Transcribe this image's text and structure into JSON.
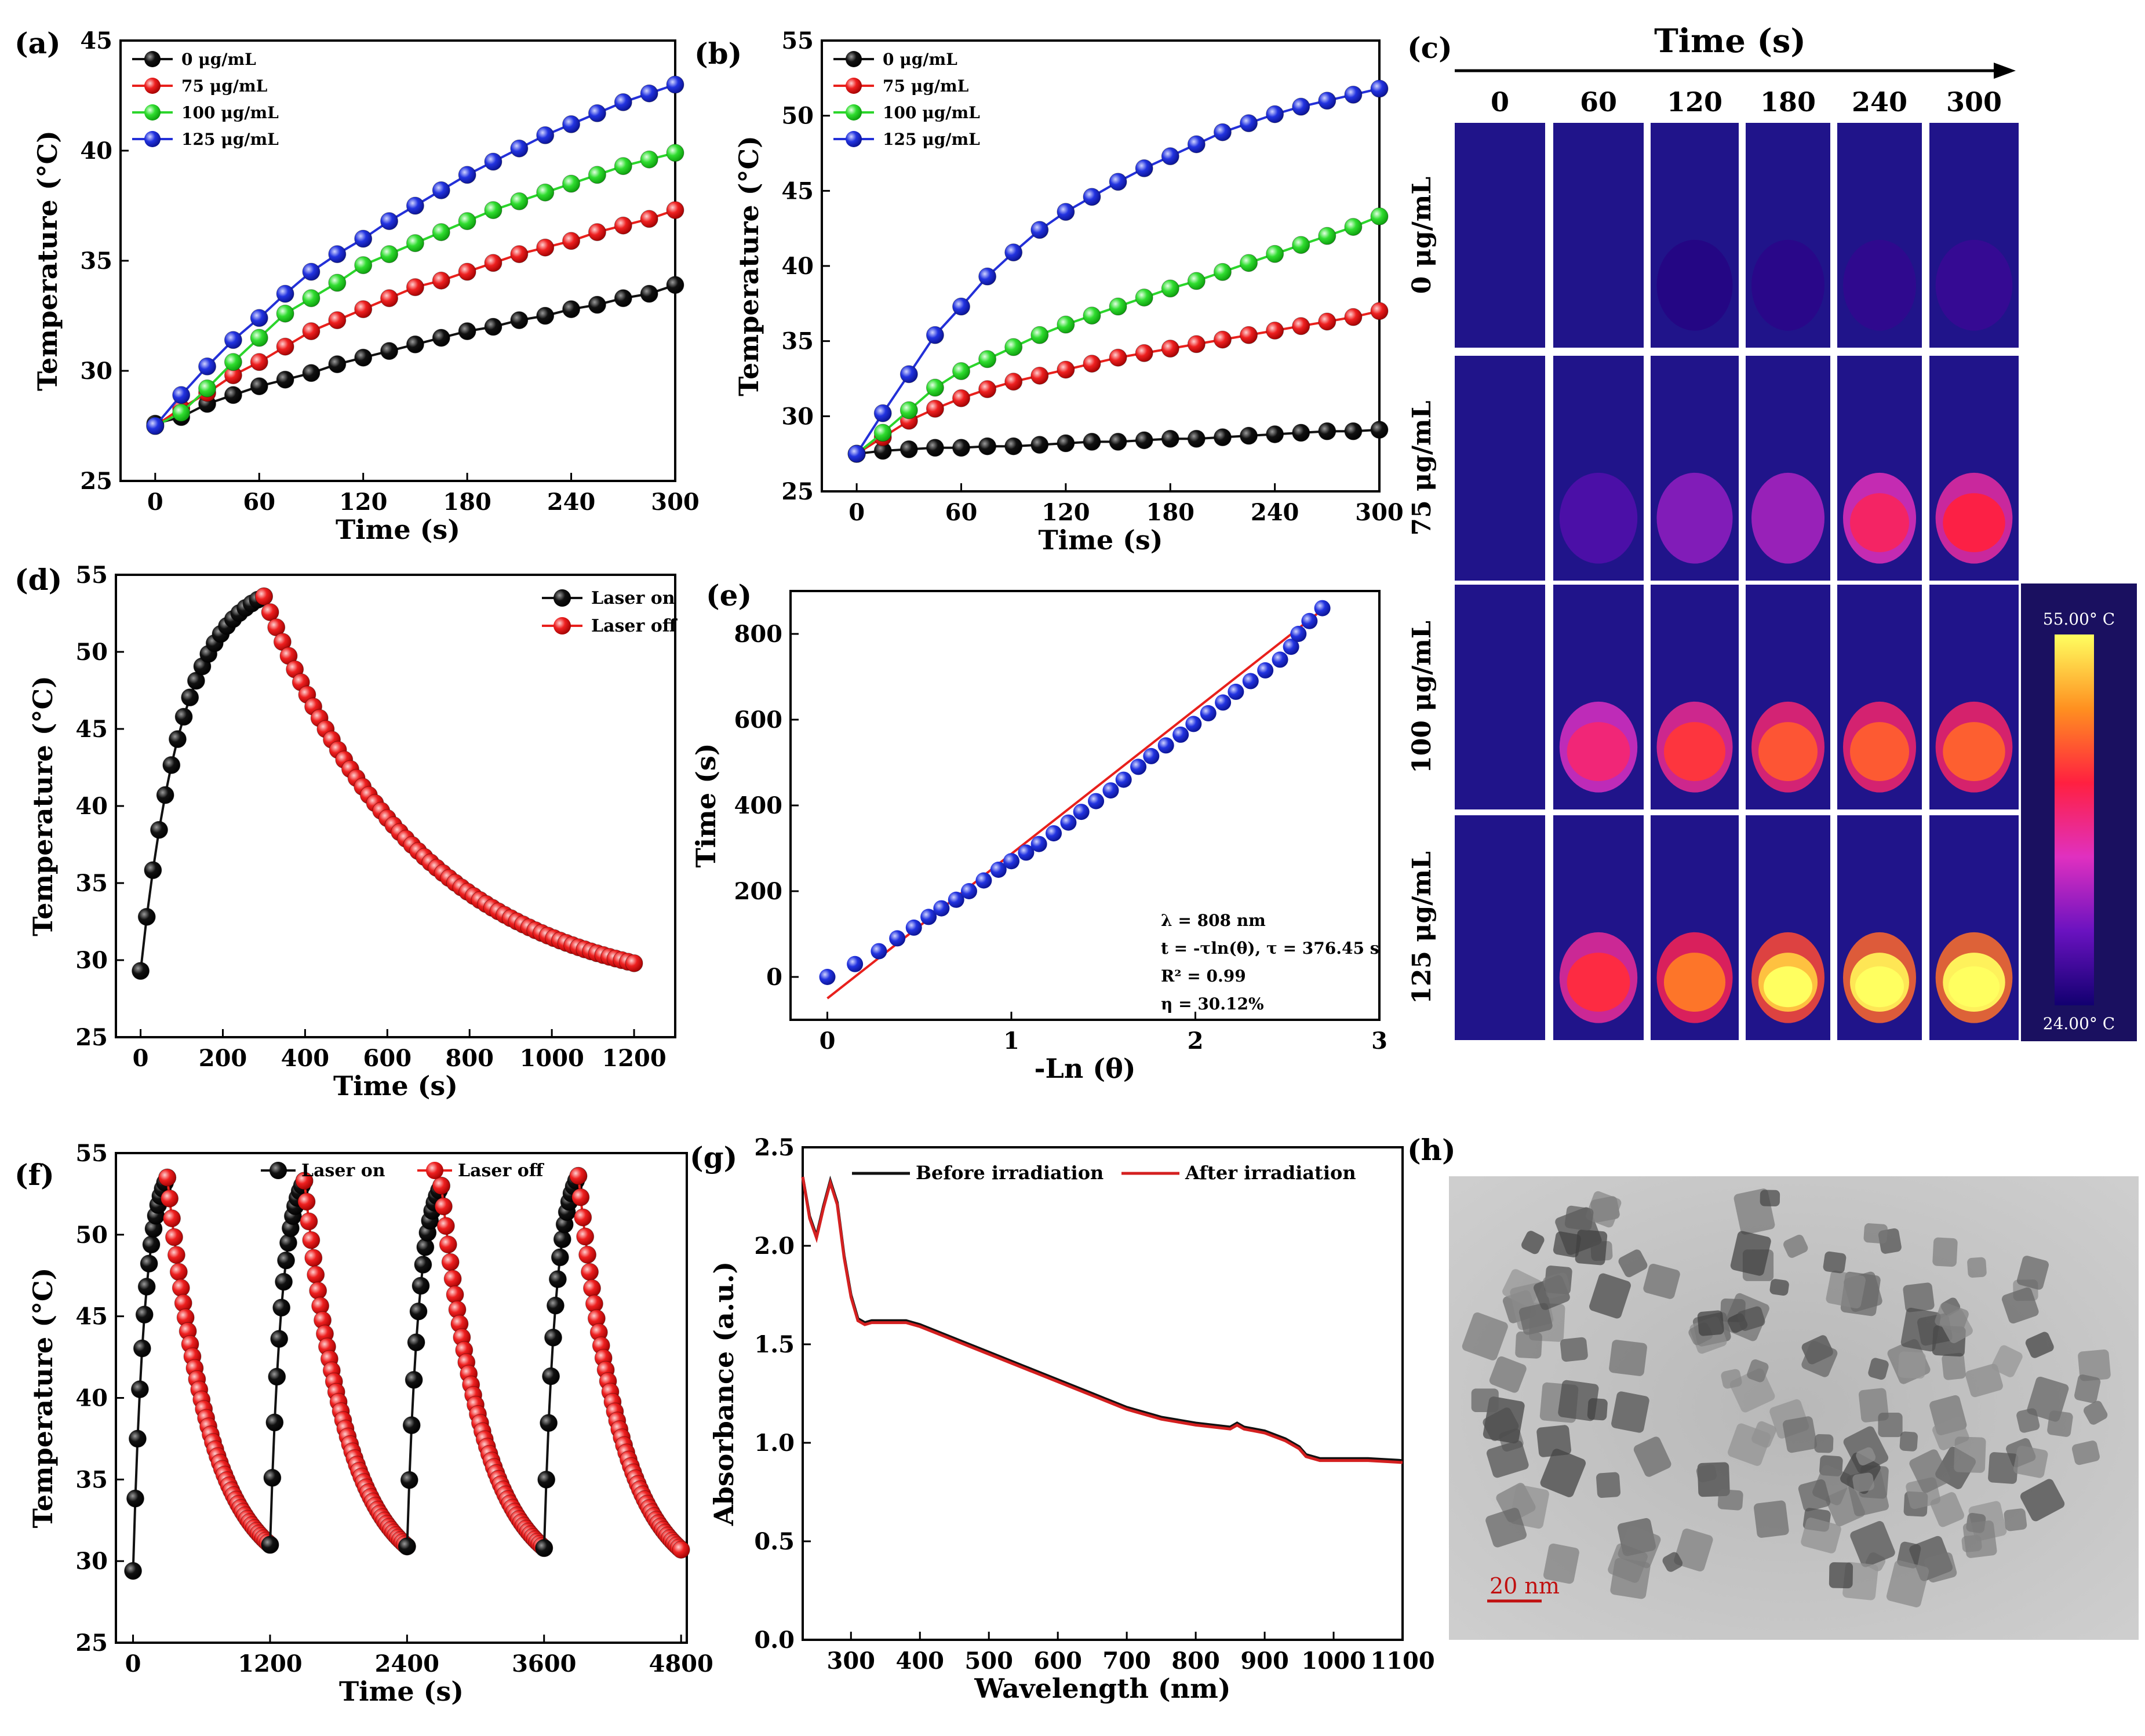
{
  "panel_labels": {
    "a": "(a)",
    "b": "(b)",
    "c": "(c)",
    "d": "(d)",
    "e": "(e)",
    "f": "(f)",
    "g": "(g)",
    "h": "(h)"
  },
  "colors": {
    "black": "#111111",
    "red": "#e8201c",
    "green": "#2bd52b",
    "blue": "#2330d8",
    "fitline": "#e8201c",
    "abs_before": "#111111",
    "abs_after": "#d42020"
  },
  "thermal": {
    "header": "Time (s)",
    "times": [
      "0",
      "60",
      "120",
      "180",
      "240",
      "300"
    ],
    "concentrations": [
      "0 μg/mL",
      "75 μg/mL",
      "100 μg/mL",
      "125 μg/mL"
    ],
    "intensity": [
      [
        0.02,
        0.04,
        0.06,
        0.08,
        0.1,
        0.12
      ],
      [
        0.03,
        0.2,
        0.36,
        0.42,
        0.55,
        0.6
      ],
      [
        0.04,
        0.52,
        0.64,
        0.7,
        0.71,
        0.72
      ],
      [
        0.05,
        0.62,
        0.76,
        0.9,
        0.97,
        0.99
      ]
    ],
    "colorbar_max": "55.00° C",
    "colorbar_min": "24.00° C"
  },
  "tem": {
    "scale_label": "20 nm"
  },
  "chart_data": [
    {
      "id": "a",
      "type": "line",
      "xlabel": "Time (s)",
      "ylabel": "Temperature (°C)",
      "xlim": [
        -20,
        300
      ],
      "ylim": [
        25,
        45
      ],
      "xticks": [
        0,
        60,
        120,
        180,
        240,
        300
      ],
      "yticks": [
        25,
        30,
        35,
        40,
        45
      ],
      "legend_position": "top-left",
      "x": [
        0,
        15,
        30,
        45,
        60,
        75,
        90,
        105,
        120,
        135,
        150,
        165,
        180,
        195,
        210,
        225,
        240,
        255,
        270,
        285,
        300
      ],
      "series": [
        {
          "name": "0 μg/mL",
          "color": "black",
          "values": [
            27.6,
            27.9,
            28.5,
            28.9,
            29.3,
            29.6,
            29.9,
            30.3,
            30.6,
            30.9,
            31.2,
            31.5,
            31.8,
            32.0,
            32.3,
            32.5,
            32.8,
            33.0,
            33.3,
            33.5,
            33.9
          ]
        },
        {
          "name": "75 μg/mL",
          "color": "red",
          "values": [
            27.5,
            28.3,
            29.0,
            29.8,
            30.4,
            31.1,
            31.8,
            32.3,
            32.8,
            33.3,
            33.8,
            34.1,
            34.5,
            34.9,
            35.3,
            35.6,
            35.9,
            36.3,
            36.6,
            36.9,
            37.3
          ]
        },
        {
          "name": "100 μg/mL",
          "color": "green",
          "values": [
            27.5,
            28.1,
            29.2,
            30.4,
            31.5,
            32.6,
            33.3,
            34.0,
            34.8,
            35.3,
            35.8,
            36.3,
            36.8,
            37.3,
            37.7,
            38.1,
            38.5,
            38.9,
            39.3,
            39.6,
            39.9
          ]
        },
        {
          "name": "125 μg/mL",
          "color": "blue",
          "values": [
            27.5,
            28.9,
            30.2,
            31.4,
            32.4,
            33.5,
            34.5,
            35.3,
            36.0,
            36.8,
            37.5,
            38.2,
            38.9,
            39.5,
            40.1,
            40.7,
            41.2,
            41.7,
            42.2,
            42.6,
            43.0
          ]
        }
      ]
    },
    {
      "id": "b",
      "type": "line",
      "xlabel": "Time (s)",
      "ylabel": "Temperature (°C)",
      "xlim": [
        -20,
        300
      ],
      "ylim": [
        25,
        55
      ],
      "xticks": [
        0,
        60,
        120,
        180,
        240,
        300
      ],
      "yticks": [
        25,
        30,
        35,
        40,
        45,
        50,
        55
      ],
      "legend_position": "top-left",
      "x": [
        0,
        15,
        30,
        45,
        60,
        75,
        90,
        105,
        120,
        135,
        150,
        165,
        180,
        195,
        210,
        225,
        240,
        255,
        270,
        285,
        300
      ],
      "series": [
        {
          "name": "0 μg/mL",
          "color": "black",
          "values": [
            27.5,
            27.7,
            27.8,
            27.9,
            27.9,
            28.0,
            28.0,
            28.1,
            28.2,
            28.3,
            28.3,
            28.4,
            28.5,
            28.5,
            28.6,
            28.7,
            28.8,
            28.9,
            29.0,
            29.0,
            29.1
          ]
        },
        {
          "name": "75 μg/mL",
          "color": "red",
          "values": [
            27.5,
            28.6,
            29.7,
            30.5,
            31.2,
            31.8,
            32.3,
            32.7,
            33.1,
            33.5,
            33.9,
            34.2,
            34.5,
            34.8,
            35.1,
            35.4,
            35.7,
            36.0,
            36.3,
            36.6,
            37.0
          ]
        },
        {
          "name": "100 μg/mL",
          "color": "green",
          "values": [
            27.5,
            28.9,
            30.4,
            31.9,
            33.0,
            33.8,
            34.6,
            35.4,
            36.1,
            36.7,
            37.3,
            37.9,
            38.5,
            39.0,
            39.6,
            40.2,
            40.8,
            41.4,
            42.0,
            42.6,
            43.3
          ]
        },
        {
          "name": "125 μg/mL",
          "color": "blue",
          "values": [
            27.5,
            30.2,
            32.8,
            35.4,
            37.3,
            39.3,
            40.9,
            42.4,
            43.6,
            44.6,
            45.6,
            46.5,
            47.3,
            48.1,
            48.9,
            49.5,
            50.1,
            50.6,
            51.0,
            51.4,
            51.8
          ]
        }
      ]
    },
    {
      "id": "d",
      "type": "line",
      "xlabel": "Time (s)",
      "ylabel": "Temperature (°C)",
      "xlim": [
        -60,
        1300
      ],
      "ylim": [
        25,
        55
      ],
      "xticks": [
        0,
        200,
        400,
        600,
        800,
        1000,
        1200
      ],
      "yticks": [
        25,
        30,
        35,
        40,
        45,
        50,
        55
      ],
      "legend_position": "top-right",
      "series": [
        {
          "name": "Laser on",
          "color": "black",
          "rule": "heat",
          "t0": 0,
          "t1": 300,
          "step": 15,
          "T0": 29.3,
          "Tmax": 53.6,
          "tau": 102
        },
        {
          "name": "Laser off",
          "color": "red",
          "rule": "cool",
          "t0": 300,
          "t1": 1200,
          "step": 15,
          "T0": 53.6,
          "Tamb": 27.4,
          "tau": 376.45
        }
      ]
    },
    {
      "id": "e",
      "type": "scatter",
      "xlabel": "-Ln (θ)",
      "ylabel": "Time (s)",
      "xlim": [
        -0.2,
        3.0
      ],
      "ylim": [
        -100,
        900
      ],
      "xticks": [
        0,
        1,
        2,
        3
      ],
      "yticks": [
        0,
        200,
        400,
        600,
        800
      ],
      "x": [
        0,
        0.15,
        0.28,
        0.38,
        0.47,
        0.55,
        0.62,
        0.7,
        0.77,
        0.85,
        0.93,
        1.0,
        1.08,
        1.15,
        1.23,
        1.31,
        1.38,
        1.46,
        1.54,
        1.61,
        1.69,
        1.76,
        1.84,
        1.92,
        1.99,
        2.07,
        2.15,
        2.22,
        2.3,
        2.38,
        2.46,
        2.52,
        2.56,
        2.62,
        2.69
      ],
      "y": [
        0,
        30,
        60,
        90,
        115,
        140,
        160,
        180,
        200,
        225,
        250,
        270,
        290,
        310,
        335,
        360,
        385,
        410,
        435,
        460,
        490,
        515,
        540,
        565,
        590,
        615,
        640,
        665,
        690,
        715,
        740,
        770,
        800,
        830,
        860
      ],
      "fit": {
        "slope": 337,
        "intercept": -50
      },
      "annotations": [
        "λ = 808 nm",
        "t = -τln(θ), τ = 376.45 s",
        "R² = 0.99",
        "η = 30.12%"
      ]
    },
    {
      "id": "f",
      "type": "line",
      "xlabel": "Time (s)",
      "ylabel": "Temperature (°C)",
      "xlim": [
        -150,
        4850
      ],
      "ylim": [
        25,
        55
      ],
      "xticks": [
        0,
        1200,
        2400,
        3600,
        4800
      ],
      "yticks": [
        25,
        30,
        35,
        40,
        45,
        50,
        55
      ],
      "legend_position": "top",
      "legend": [
        "Laser on",
        "Laser off"
      ],
      "cycles": [
        {
          "heat_start": 0,
          "T_start": 29.4,
          "T_peak": 53.5,
          "cool_end": 1200
        },
        {
          "heat_start": 1200,
          "T_start": 31.0,
          "T_peak": 53.3,
          "cool_end": 2400
        },
        {
          "heat_start": 2400,
          "T_start": 30.9,
          "T_peak": 53.0,
          "cool_end": 3600
        },
        {
          "heat_start": 3600,
          "T_start": 30.8,
          "T_peak": 53.6,
          "cool_end": 4800
        }
      ],
      "heat_duration": 300,
      "step": 20
    },
    {
      "id": "g",
      "type": "line",
      "xlabel": "Wavelength (nm)",
      "ylabel": "Absorbance (a.u.)",
      "xlim": [
        230,
        1100
      ],
      "ylim": [
        0.0,
        2.5
      ],
      "xticks": [
        300,
        400,
        500,
        600,
        700,
        800,
        900,
        1000,
        1100
      ],
      "yticks": [
        0.0,
        0.5,
        1.0,
        1.5,
        2.0,
        2.5
      ],
      "legend_position": "top",
      "x": [
        230,
        240,
        250,
        260,
        270,
        280,
        290,
        300,
        310,
        320,
        330,
        350,
        380,
        400,
        450,
        500,
        550,
        600,
        650,
        700,
        750,
        800,
        850,
        860,
        870,
        900,
        930,
        950,
        960,
        970,
        980,
        1000,
        1050,
        1100
      ],
      "series": [
        {
          "name": "Before irradiation",
          "color": "abs_before",
          "values": [
            2.35,
            2.15,
            2.05,
            2.2,
            2.33,
            2.22,
            1.95,
            1.75,
            1.63,
            1.61,
            1.62,
            1.62,
            1.62,
            1.6,
            1.53,
            1.46,
            1.39,
            1.32,
            1.25,
            1.18,
            1.13,
            1.1,
            1.08,
            1.1,
            1.08,
            1.06,
            1.02,
            0.98,
            0.94,
            0.93,
            0.92,
            0.92,
            0.92,
            0.91
          ]
        },
        {
          "name": "After irradiation",
          "color": "abs_after",
          "values": [
            2.35,
            2.14,
            2.04,
            2.19,
            2.32,
            2.21,
            1.94,
            1.74,
            1.62,
            1.6,
            1.61,
            1.61,
            1.61,
            1.59,
            1.52,
            1.45,
            1.38,
            1.31,
            1.24,
            1.17,
            1.12,
            1.09,
            1.07,
            1.09,
            1.07,
            1.05,
            1.01,
            0.97,
            0.93,
            0.92,
            0.91,
            0.91,
            0.91,
            0.9
          ]
        }
      ]
    }
  ]
}
